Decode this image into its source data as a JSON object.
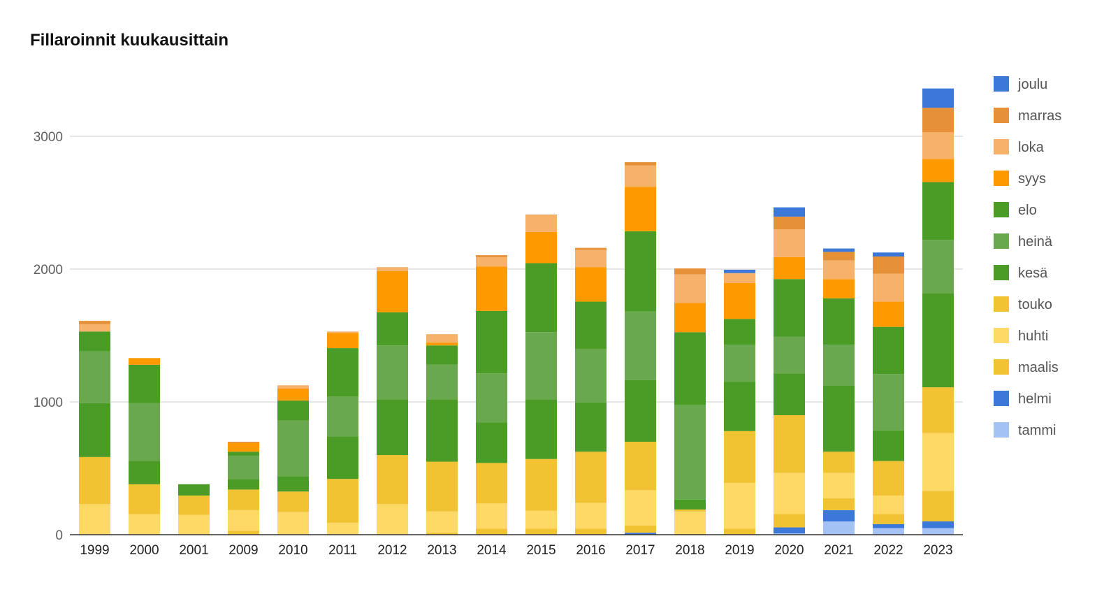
{
  "chart_data": {
    "type": "bar",
    "stacked": true,
    "title": "Fillaroinnit kuukausittain",
    "xlabel": "",
    "ylabel": "",
    "ylim": [
      0,
      3400
    ],
    "yticks": [
      0,
      1000,
      2000,
      3000
    ],
    "grid": true,
    "legend_position": "right",
    "categories": [
      "1999",
      "2000",
      "2001",
      "2009",
      "2010",
      "2011",
      "2012",
      "2013",
      "2014",
      "2015",
      "2016",
      "2017",
      "2018",
      "2019",
      "2020",
      "2021",
      "2022",
      "2023"
    ],
    "series": [
      {
        "name": "tammi",
        "color": "#a4c2f4",
        "values": [
          0,
          0,
          0,
          0,
          0,
          0,
          0,
          0,
          0,
          0,
          0,
          0,
          0,
          0,
          10,
          100,
          50,
          50
        ]
      },
      {
        "name": "helmi",
        "color": "#3c78d8",
        "values": [
          0,
          0,
          0,
          0,
          0,
          0,
          0,
          0,
          0,
          0,
          0,
          15,
          0,
          0,
          45,
          85,
          30,
          50
        ]
      },
      {
        "name": "maalis",
        "color": "#f1c232",
        "values": [
          0,
          0,
          0,
          30,
          0,
          0,
          0,
          15,
          45,
          45,
          45,
          55,
          5,
          45,
          100,
          90,
          75,
          230
        ]
      },
      {
        "name": "huhti",
        "color": "#ffd966",
        "values": [
          230,
          155,
          150,
          155,
          170,
          90,
          230,
          160,
          190,
          135,
          195,
          265,
          170,
          345,
          310,
          190,
          140,
          435
        ]
      },
      {
        "name": "touko",
        "color": "#f1c232",
        "values": [
          355,
          225,
          145,
          155,
          155,
          330,
          370,
          375,
          305,
          390,
          385,
          365,
          15,
          390,
          435,
          160,
          260,
          345
        ]
      },
      {
        "name": "kesä",
        "color": "#4a9c26",
        "values": [
          405,
          175,
          85,
          80,
          115,
          320,
          420,
          470,
          305,
          450,
          370,
          465,
          75,
          370,
          315,
          500,
          230,
          710
        ]
      },
      {
        "name": "heinä",
        "color": "#6aa84f",
        "values": [
          390,
          435,
          0,
          175,
          420,
          300,
          405,
          260,
          370,
          505,
          405,
          515,
          710,
          280,
          275,
          305,
          425,
          400
        ]
      },
      {
        "name": "elo",
        "color": "#4a9c26",
        "values": [
          150,
          290,
          0,
          30,
          150,
          365,
          250,
          145,
          470,
          520,
          355,
          605,
          550,
          195,
          435,
          350,
          355,
          435
        ]
      },
      {
        "name": "syys",
        "color": "#ff9900",
        "values": [
          0,
          50,
          0,
          65,
          90,
          115,
          310,
          20,
          335,
          235,
          260,
          335,
          220,
          270,
          165,
          145,
          190,
          175
        ]
      },
      {
        "name": "loka",
        "color": "#f6b26b",
        "values": [
          55,
          0,
          0,
          0,
          25,
          10,
          30,
          65,
          70,
          125,
          130,
          160,
          215,
          75,
          210,
          140,
          210,
          200
        ]
      },
      {
        "name": "marras",
        "color": "#e69138",
        "values": [
          25,
          0,
          0,
          10,
          0,
          0,
          0,
          0,
          15,
          5,
          15,
          25,
          45,
          0,
          95,
          65,
          130,
          185
        ]
      },
      {
        "name": "joulu",
        "color": "#3c78d8",
        "values": [
          0,
          0,
          0,
          0,
          0,
          0,
          0,
          0,
          0,
          0,
          0,
          0,
          0,
          25,
          70,
          25,
          30,
          145
        ]
      }
    ]
  }
}
